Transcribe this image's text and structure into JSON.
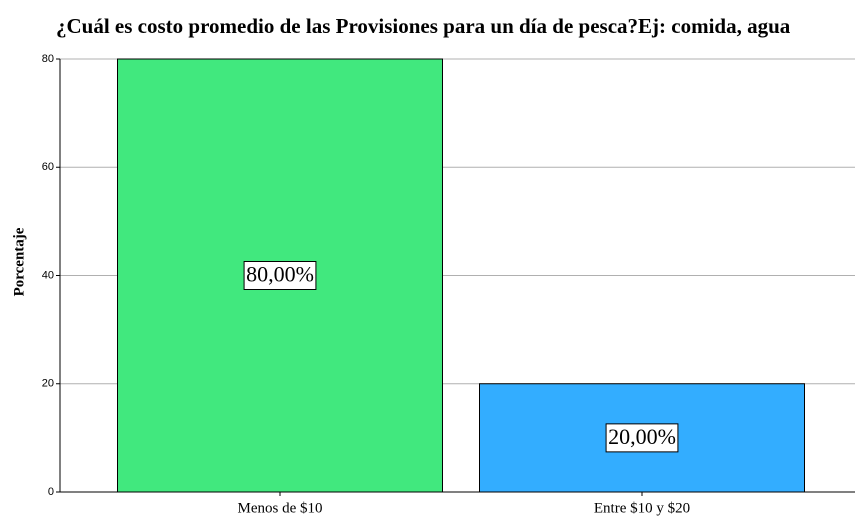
{
  "chart_data": {
    "type": "bar",
    "title": "¿Cuál es costo promedio de las Provisiones para un día de pesca?Ej: comida, agua",
    "y_label": "Porcentaje",
    "categories": [
      "Menos de $10",
      "Entre $10 y $20"
    ],
    "values": [
      80,
      20
    ],
    "value_labels": [
      "80,00%",
      "20,00%"
    ],
    "colors": [
      "#41e87e",
      "#33adff"
    ],
    "ylim": [
      0,
      80
    ],
    "yticks": [
      0,
      20,
      40,
      60,
      80
    ],
    "grid": true
  }
}
